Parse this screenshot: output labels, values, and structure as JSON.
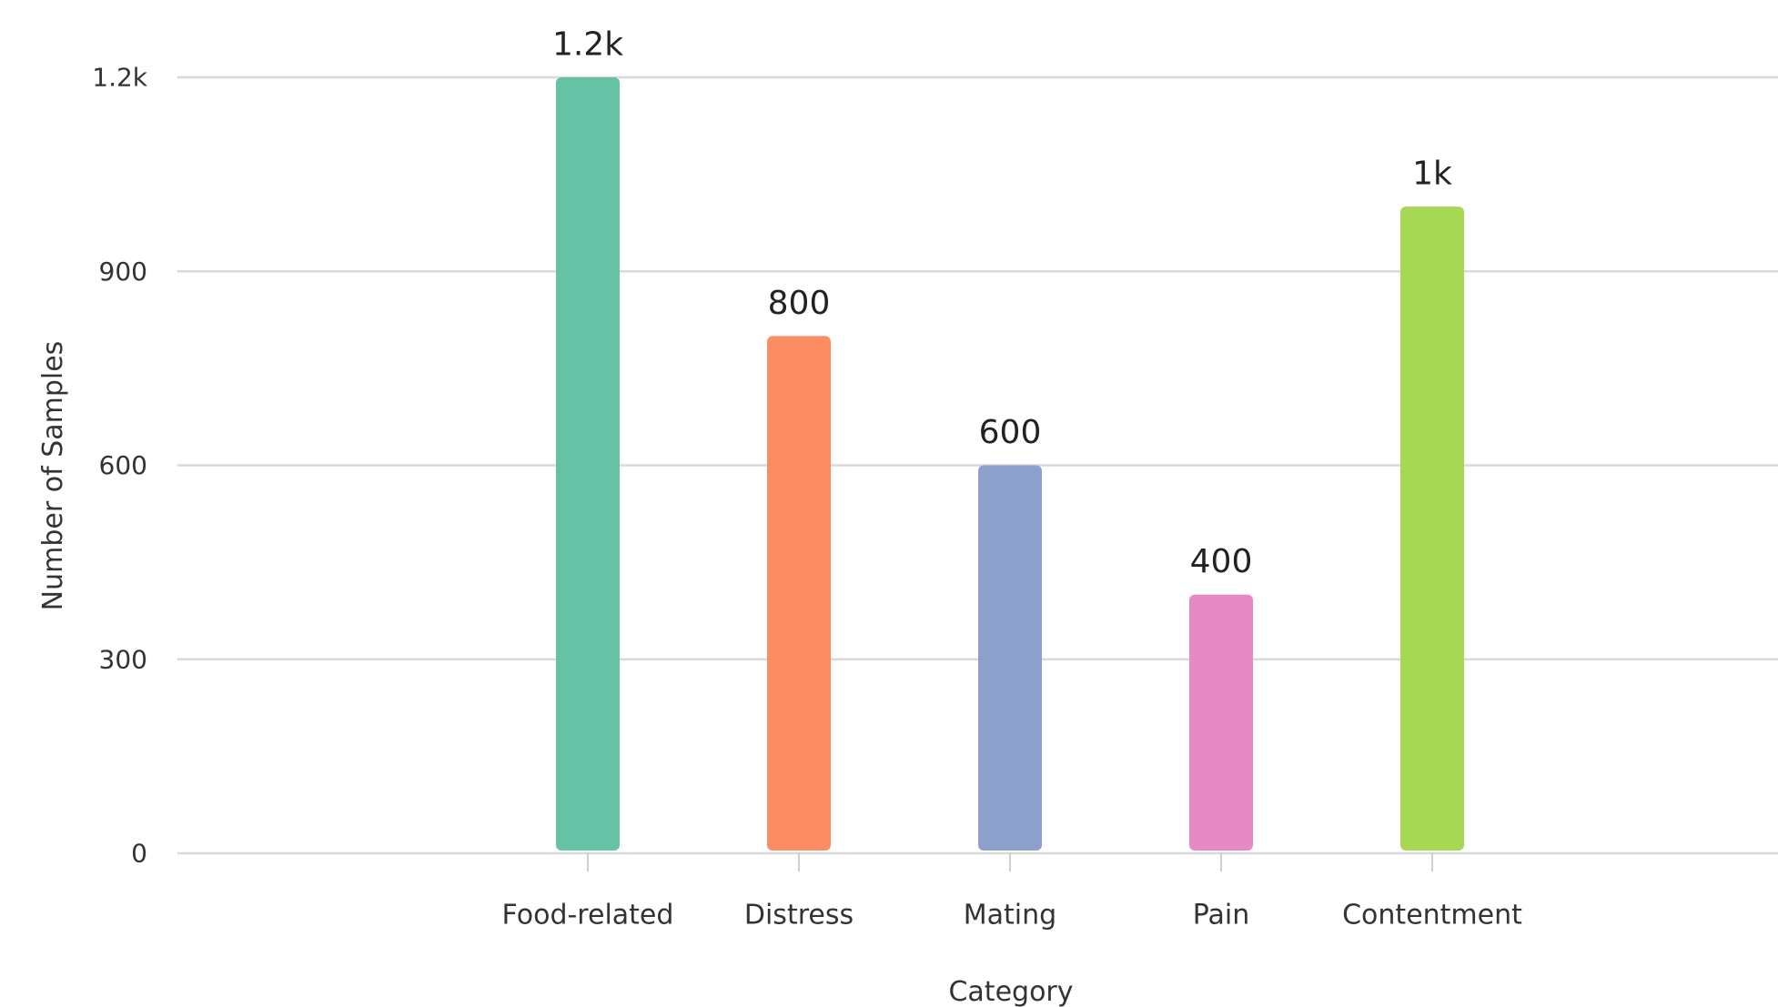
{
  "chart_data": {
    "type": "bar",
    "title": "",
    "xlabel": "Category",
    "ylabel": "Number of Samples",
    "categories": [
      "Food-related",
      "Distress",
      "Mating",
      "Pain",
      "Contentment"
    ],
    "values": [
      1200,
      800,
      600,
      400,
      1000
    ],
    "data_labels": [
      "1.2k",
      "800",
      "600",
      "400",
      "1k"
    ],
    "colors": [
      "#66c2a5",
      "#fc8d62",
      "#8da0cb",
      "#e78ac3",
      "#a6d854"
    ],
    "ylim": [
      0,
      1200
    ],
    "yticks": [
      0,
      300,
      600,
      900,
      1200
    ],
    "ytick_labels": [
      "0",
      "300",
      "600",
      "900",
      "1.2k"
    ],
    "grid": true,
    "legend": "none"
  }
}
